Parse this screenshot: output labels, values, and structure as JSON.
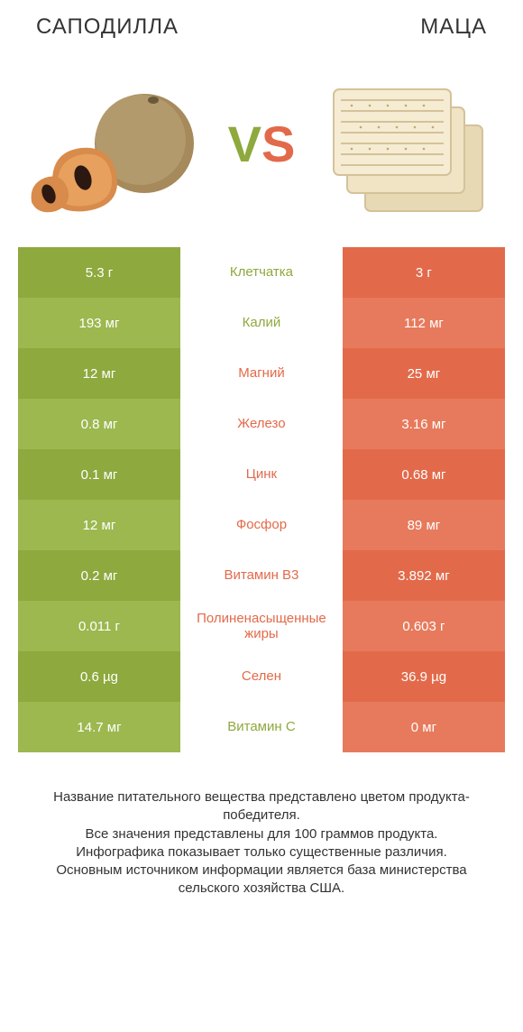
{
  "header": {
    "left_title": "САПОДИЛЛА",
    "right_title": "МАЦА",
    "vs_v": "V",
    "vs_s": "S"
  },
  "colors": {
    "left": "#8ea93d",
    "left_alt": "#9cb84f",
    "right": "#e26a4a",
    "right_alt": "#e77a5c",
    "text": "#333333",
    "bg": "#ffffff"
  },
  "rows": [
    {
      "label": "Клетчатка",
      "left": "5.3 г",
      "right": "3 г",
      "winner": "left"
    },
    {
      "label": "Калий",
      "left": "193 мг",
      "right": "112 мг",
      "winner": "left"
    },
    {
      "label": "Магний",
      "left": "12 мг",
      "right": "25 мг",
      "winner": "right"
    },
    {
      "label": "Железо",
      "left": "0.8 мг",
      "right": "3.16 мг",
      "winner": "right"
    },
    {
      "label": "Цинк",
      "left": "0.1 мг",
      "right": "0.68 мг",
      "winner": "right"
    },
    {
      "label": "Фосфор",
      "left": "12 мг",
      "right": "89 мг",
      "winner": "right"
    },
    {
      "label": "Витамин B3",
      "left": "0.2 мг",
      "right": "3.892 мг",
      "winner": "right"
    },
    {
      "label": "Полиненасыщенные жиры",
      "left": "0.011 г",
      "right": "0.603 г",
      "winner": "right"
    },
    {
      "label": "Селен",
      "left": "0.6 µg",
      "right": "36.9 µg",
      "winner": "right"
    },
    {
      "label": "Витамин C",
      "left": "14.7 мг",
      "right": "0 мг",
      "winner": "left"
    }
  ],
  "footer": {
    "l1": "Название питательного вещества представлено цветом продукта-победителя.",
    "l2": "Все значения представлены для 100 граммов продукта.",
    "l3": "Инфографика показывает только существенные различия.",
    "l4": "Основным источником информации является база министерства сельского хозяйства США."
  }
}
